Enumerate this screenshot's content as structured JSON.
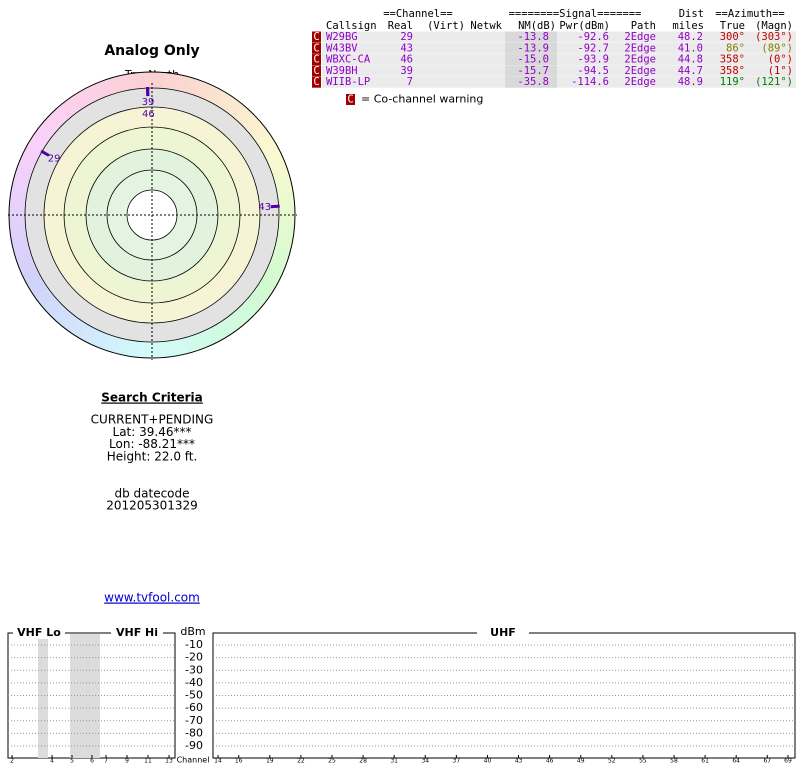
{
  "header": {
    "title": "Analog Only",
    "north_label": "TrueNorth"
  },
  "polar": {
    "markers": [
      {
        "label": "39",
        "azimuth": 358
      },
      {
        "label": "46",
        "azimuth": 358
      },
      {
        "label": "29",
        "azimuth": 300
      },
      {
        "label": "43",
        "azimuth": 86
      }
    ]
  },
  "table": {
    "header_top": [
      "==Channel==",
      "========Signal=======",
      "Dist",
      "==Azimuth=="
    ],
    "header": [
      "Callsign",
      "Real",
      "(Virt)",
      "Netwk",
      "NM(dB)",
      "Pwr(dBm)",
      "Path",
      "miles",
      "True",
      "(Magn)"
    ],
    "badge": "C",
    "rows": [
      {
        "cells": [
          "W29BG",
          "29",
          "-13.8",
          "-92.6",
          "2Edge",
          "48.2",
          "300°",
          "(303°)"
        ],
        "azimuth_color": "#c00000"
      },
      {
        "cells": [
          "W43BV",
          "43",
          "-13.9",
          "-92.7",
          "2Edge",
          "41.0",
          "86°",
          "(89°)"
        ],
        "azimuth_color": "#808000"
      },
      {
        "cells": [
          "WBXC-CA",
          "46",
          "-15.0",
          "-93.9",
          "2Edge",
          "44.8",
          "358°",
          "(0°)"
        ],
        "azimuth_color": "#c00000"
      },
      {
        "cells": [
          "W39BH",
          "39",
          "-15.7",
          "-94.5",
          "2Edge",
          "44.7",
          "358°",
          "(1°)"
        ],
        "azimuth_color": "#c00000"
      },
      {
        "cells": [
          "WIIB-LP",
          "7",
          "-35.8",
          "-114.6",
          "2Edge",
          "48.9",
          "119°",
          "(121°)"
        ],
        "azimuth_color": "#008000"
      }
    ],
    "legend": "= Co-channel warning"
  },
  "criteria": {
    "title": "Search Criteria",
    "lines": [
      "CURRENT+PENDING",
      "Lat: 39.46***",
      "Lon: -88.21***",
      "Height: 22.0 ft."
    ],
    "datecode_label": "db datecode",
    "datecode": "201205301329",
    "link": "www.tvfool.com"
  },
  "spectrum": {
    "sections": [
      "VHF Lo",
      "VHF Hi",
      "UHF"
    ],
    "y_label": "dBm",
    "x_label": "Channel",
    "yticks": [
      -10,
      -20,
      -30,
      -40,
      -50,
      -60,
      -70,
      -80,
      -90
    ],
    "vhf_lo_ticks": [
      2,
      4,
      5,
      6
    ],
    "vhf_hi_ticks": [
      7,
      9,
      11,
      13
    ],
    "uhf_ticks": [
      14,
      16,
      19,
      22,
      25,
      28,
      31,
      34,
      37,
      40,
      43,
      46,
      49,
      52,
      55,
      58,
      61,
      64,
      67,
      69
    ]
  }
}
